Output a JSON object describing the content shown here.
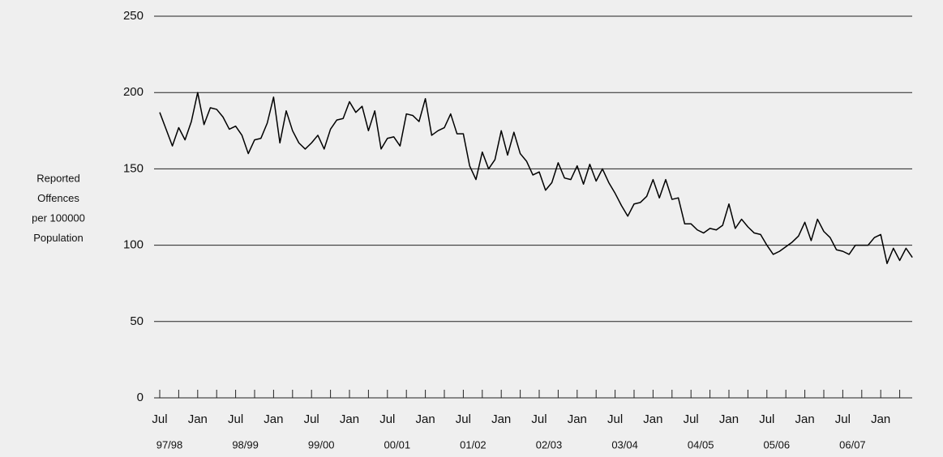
{
  "chart_data": {
    "type": "line",
    "ylabel": [
      "Reported",
      "Offences",
      "per 100000",
      "Population"
    ],
    "categories": [
      "Jul",
      null,
      null,
      null,
      null,
      null,
      "Jan",
      null,
      null,
      null,
      null,
      null,
      "Jul",
      null,
      null,
      null,
      null,
      null,
      "Jan",
      null,
      null,
      null,
      null,
      null,
      "Jul",
      null,
      null,
      null,
      null,
      null,
      "Jan",
      null,
      null,
      null,
      null,
      null,
      "Jul",
      null,
      null,
      null,
      null,
      null,
      "Jan",
      null,
      null,
      null,
      null,
      null,
      "Jul",
      null,
      null,
      null,
      null,
      null,
      "Jan",
      null,
      null,
      null,
      null,
      null,
      "Jul",
      null,
      null,
      null,
      null,
      null,
      "Jan",
      null,
      null,
      null,
      null,
      null,
      "Jul",
      null,
      null,
      null,
      null,
      null,
      "Jan",
      null,
      null,
      null,
      null,
      null,
      "Jul",
      null,
      null,
      null,
      null,
      null,
      "Jan",
      null,
      null,
      null,
      null,
      null,
      "Jul",
      null,
      null,
      null,
      null,
      null,
      "Jan",
      null,
      null,
      null,
      null,
      null,
      "Jul",
      null,
      null,
      null,
      null,
      null,
      "Jan",
      null,
      null,
      null,
      null,
      null
    ],
    "groups": [
      "97/98",
      "98/99",
      "99/00",
      "00/01",
      "01/02",
      "02/03",
      "03/04",
      "04/05",
      "05/06",
      "06/07"
    ],
    "series": [
      {
        "color": "#000000",
        "values": [
          187,
          176,
          165,
          177,
          169,
          181,
          200,
          179,
          190,
          189,
          184,
          176,
          178,
          172,
          160,
          169,
          170,
          180,
          197,
          167,
          188,
          175,
          167,
          163,
          167,
          172,
          163,
          176,
          182,
          183,
          194,
          187,
          191,
          175,
          188,
          163,
          170,
          171,
          165,
          186,
          185,
          181,
          196,
          172,
          175,
          177,
          186,
          173,
          173,
          152,
          143,
          161,
          150,
          156,
          175,
          159,
          174,
          160,
          155,
          146,
          148,
          136,
          141,
          154,
          144,
          143,
          152,
          140,
          153,
          142,
          150,
          141,
          134,
          126,
          119,
          127,
          128,
          132,
          143,
          131,
          143,
          130,
          131,
          114,
          114,
          110,
          108,
          111,
          110,
          113,
          127,
          111,
          117,
          112,
          108,
          107,
          100,
          94,
          96,
          99,
          102,
          106,
          115,
          103,
          117,
          109,
          105,
          97,
          96,
          94,
          100,
          100,
          100,
          105,
          107,
          88,
          98,
          90,
          98,
          92
        ]
      }
    ],
    "ylim": [
      0,
      250
    ],
    "yticks": [
      0,
      50,
      100,
      150,
      200,
      250
    ],
    "grid": true
  }
}
